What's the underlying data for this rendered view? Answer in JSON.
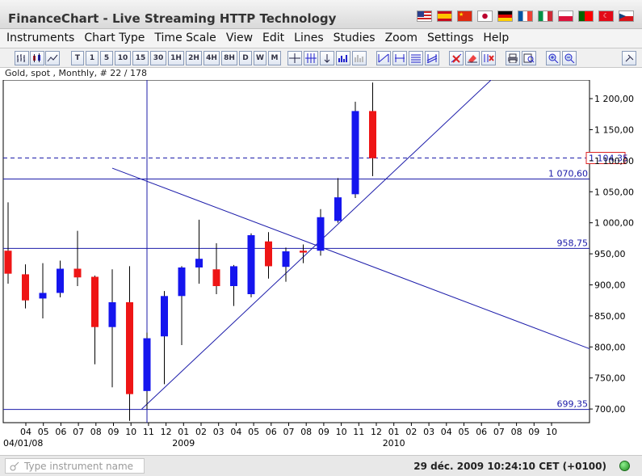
{
  "app": {
    "title": "FinanceChart - Live Streaming HTTP Technology"
  },
  "flags": [
    "us-flag-icon",
    "es-flag-icon",
    "cn-flag-icon",
    "jp-flag-icon",
    "de-flag-icon",
    "fr-flag-icon",
    "it-flag-icon",
    "pl-flag-icon",
    "pt-flag-icon",
    "tr-flag-icon",
    "cz-flag-icon"
  ],
  "menu": [
    "Instruments",
    "Chart Type",
    "Time Scale",
    "View",
    "Edit",
    "Lines",
    "Studies",
    "Zoom",
    "Settings",
    "Help"
  ],
  "toolbar": {
    "timescales": [
      "T",
      "1",
      "5",
      "10",
      "15",
      "30",
      "1H",
      "2H",
      "4H",
      "8H",
      "D",
      "W",
      "M"
    ]
  },
  "chart_info": "Gold, spot , Monthly, # 22 / 178",
  "chart_data": {
    "type": "candlestick",
    "title": "Gold, spot , Monthly, # 22 / 178",
    "ylim": [
      678,
      1230
    ],
    "yticks": [
      700,
      750,
      800,
      850,
      900,
      950,
      1000,
      1050,
      1100,
      1150,
      1200
    ],
    "ytick_labels": [
      "700,00",
      "750,00",
      "800,00",
      "850,00",
      "900,00",
      "950,00",
      "1 000,00",
      "1 050,00",
      "1 100,00",
      "1 150,00",
      "1 200,00"
    ],
    "xtick_labels": [
      "04",
      "05",
      "06",
      "07",
      "08",
      "09",
      "10",
      "11",
      "12",
      "01",
      "02",
      "03",
      "04",
      "05",
      "06",
      "07",
      "08",
      "09",
      "10",
      "11",
      "12",
      "01",
      "02",
      "03",
      "04",
      "05",
      "06",
      "07",
      "08",
      "09",
      "10"
    ],
    "x_year_labels": [
      "04/01/08",
      "2009",
      "2010"
    ],
    "series": [
      {
        "open": 955,
        "high": 1033,
        "low": 902,
        "close": 918
      },
      {
        "open": 917,
        "high": 933,
        "low": 862,
        "close": 875
      },
      {
        "open": 878,
        "high": 935,
        "low": 846,
        "close": 887
      },
      {
        "open": 887,
        "high": 939,
        "low": 880,
        "close": 926
      },
      {
        "open": 926,
        "high": 987,
        "low": 898,
        "close": 912
      },
      {
        "open": 913,
        "high": 915,
        "low": 772,
        "close": 832
      },
      {
        "open": 832,
        "high": 925,
        "low": 735,
        "close": 872
      },
      {
        "open": 872,
        "high": 930,
        "low": 681,
        "close": 724
      },
      {
        "open": 729,
        "high": 823,
        "low": 700,
        "close": 814
      },
      {
        "open": 817,
        "high": 890,
        "low": 740,
        "close": 882
      },
      {
        "open": 882,
        "high": 930,
        "low": 803,
        "close": 928
      },
      {
        "open": 928,
        "high": 1005,
        "low": 902,
        "close": 942
      },
      {
        "open": 925,
        "high": 967,
        "low": 885,
        "close": 898
      },
      {
        "open": 898,
        "high": 932,
        "low": 866,
        "close": 930
      },
      {
        "open": 885,
        "high": 983,
        "low": 880,
        "close": 980
      },
      {
        "open": 970,
        "high": 985,
        "low": 910,
        "close": 930
      },
      {
        "open": 929,
        "high": 960,
        "low": 905,
        "close": 954
      },
      {
        "open": 955,
        "high": 965,
        "low": 935,
        "close": 952
      },
      {
        "open": 955,
        "high": 1022,
        "low": 947,
        "close": 1009
      },
      {
        "open": 1003,
        "high": 1072,
        "low": 1000,
        "close": 1041
      },
      {
        "open": 1046,
        "high": 1195,
        "low": 1040,
        "close": 1180
      },
      {
        "open": 1180,
        "high": 1226,
        "low": 1075,
        "close": 1104
      }
    ],
    "hlines": [
      {
        "value": 1104.35,
        "label": "1 104,35",
        "style": "dashed",
        "boxed": true
      },
      {
        "value": 1070.6,
        "label": "1 070,60",
        "style": "solid"
      },
      {
        "value": 958.75,
        "label": "958,75",
        "style": "solid"
      },
      {
        "value": 699.35,
        "label": "699,35",
        "style": "solid"
      }
    ],
    "trendlines": [
      {
        "from": {
          "index": 7.7,
          "value": 700
        },
        "to": {
          "index": 28.5,
          "value": 1248
        }
      },
      {
        "from": {
          "index": 6.0,
          "value": 1088
        },
        "to": {
          "index": 33.5,
          "value": 797
        }
      }
    ],
    "crosshair_index": 8,
    "colors": {
      "up": "#1515ee",
      "down": "#ee1515",
      "lines": "#1c1caa",
      "grid": "none"
    },
    "grid": false,
    "legend": "none"
  },
  "status": {
    "search_placeholder": "Type instrument name",
    "datetime": "29 déc. 2009 10:24:10 CET (+0100)"
  }
}
